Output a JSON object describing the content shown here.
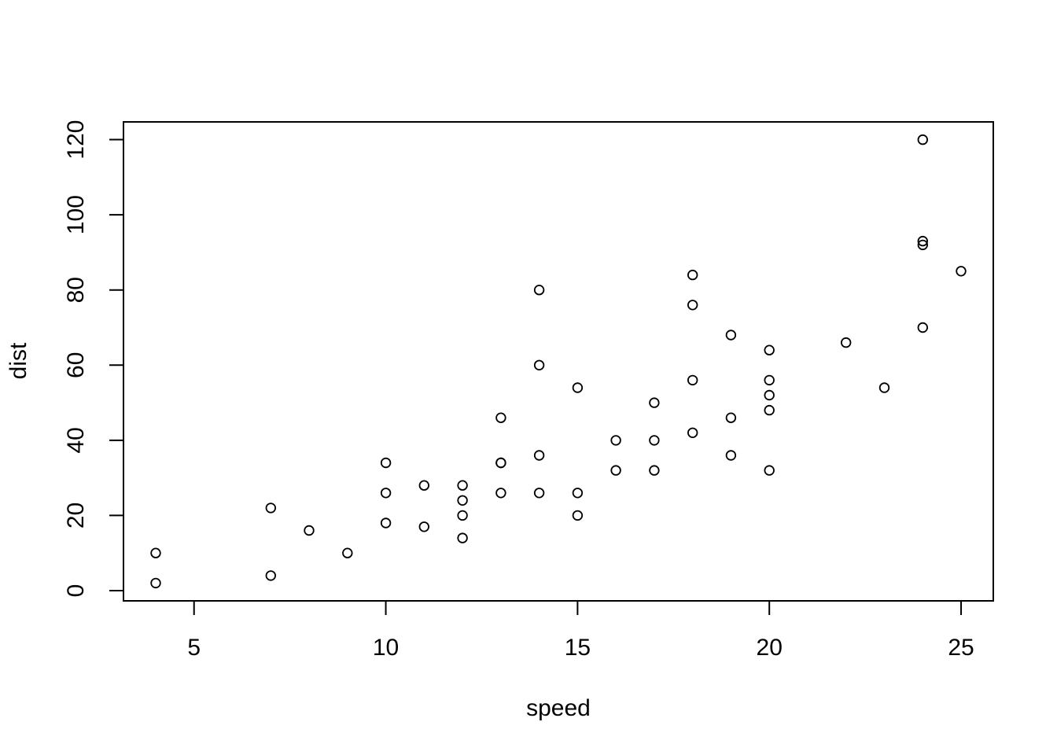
{
  "chart_data": {
    "type": "scatter",
    "title": "",
    "xlabel": "speed",
    "ylabel": "dist",
    "xlim": [
      4,
      25
    ],
    "ylim": [
      2,
      120
    ],
    "x_ticks": [
      "5",
      "10",
      "15",
      "20",
      "25"
    ],
    "x_tick_values": [
      5,
      10,
      15,
      20,
      25
    ],
    "y_ticks": [
      "0",
      "20",
      "40",
      "60",
      "80",
      "100",
      "120"
    ],
    "y_tick_values": [
      0,
      20,
      40,
      60,
      80,
      100,
      120
    ],
    "grid": false,
    "legend_position": "none",
    "marker": "open-circle",
    "marker_color": "#000000",
    "frame": "box",
    "points": [
      [
        4,
        2
      ],
      [
        4,
        10
      ],
      [
        7,
        4
      ],
      [
        7,
        22
      ],
      [
        8,
        16
      ],
      [
        9,
        10
      ],
      [
        10,
        18
      ],
      [
        10,
        26
      ],
      [
        10,
        34
      ],
      [
        11,
        17
      ],
      [
        11,
        28
      ],
      [
        12,
        14
      ],
      [
        12,
        20
      ],
      [
        12,
        24
      ],
      [
        12,
        28
      ],
      [
        13,
        26
      ],
      [
        13,
        34
      ],
      [
        13,
        34
      ],
      [
        13,
        46
      ],
      [
        14,
        26
      ],
      [
        14,
        36
      ],
      [
        14,
        60
      ],
      [
        14,
        80
      ],
      [
        15,
        20
      ],
      [
        15,
        26
      ],
      [
        15,
        54
      ],
      [
        16,
        32
      ],
      [
        16,
        40
      ],
      [
        17,
        32
      ],
      [
        17,
        40
      ],
      [
        17,
        50
      ],
      [
        18,
        42
      ],
      [
        18,
        56
      ],
      [
        18,
        76
      ],
      [
        18,
        84
      ],
      [
        19,
        36
      ],
      [
        19,
        46
      ],
      [
        19,
        68
      ],
      [
        20,
        32
      ],
      [
        20,
        48
      ],
      [
        20,
        52
      ],
      [
        20,
        56
      ],
      [
        20,
        64
      ],
      [
        22,
        66
      ],
      [
        23,
        54
      ],
      [
        24,
        70
      ],
      [
        24,
        92
      ],
      [
        24,
        93
      ],
      [
        24,
        120
      ],
      [
        25,
        85
      ]
    ]
  },
  "colors": {
    "foreground": "#000000",
    "background": "#ffffff"
  }
}
